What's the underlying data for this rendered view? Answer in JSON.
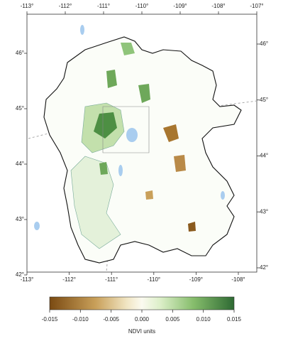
{
  "map": {
    "top_lon_ticks": [
      {
        "value": -113,
        "label": "-113°"
      },
      {
        "value": -112,
        "label": "-112°"
      },
      {
        "value": -111,
        "label": "-111°"
      },
      {
        "value": -110,
        "label": "-110°"
      },
      {
        "value": -109,
        "label": "-109°"
      },
      {
        "value": -108,
        "label": "-108°"
      },
      {
        "value": -107,
        "label": "-107°"
      }
    ],
    "bottom_lon_ticks": [
      {
        "value": -113,
        "label": "-113°"
      },
      {
        "value": -112,
        "label": "-112°"
      },
      {
        "value": -111,
        "label": "-111°"
      },
      {
        "value": -110,
        "label": "-110°"
      },
      {
        "value": -109,
        "label": "-109°"
      },
      {
        "value": -108,
        "label": "-108°"
      }
    ],
    "left_lat_ticks": [
      {
        "value": 46,
        "label": "46°"
      },
      {
        "value": 45,
        "label": "45°"
      },
      {
        "value": 44,
        "label": "44°"
      },
      {
        "value": 43,
        "label": "43°"
      },
      {
        "value": 42,
        "label": "42°"
      }
    ],
    "right_lat_ticks": [
      {
        "value": 46,
        "label": "46°"
      },
      {
        "value": 45,
        "label": "45°"
      },
      {
        "value": 44,
        "label": "44°"
      },
      {
        "value": 43,
        "label": "43°"
      },
      {
        "value": 42,
        "label": "42°"
      }
    ],
    "colorbar": {
      "lim": [
        -0.015,
        0.015
      ],
      "ticks": [
        {
          "value": -0.015,
          "label": "-0.015"
        },
        {
          "value": -0.01,
          "label": "-0.010"
        },
        {
          "value": -0.005,
          "label": "-0.005"
        },
        {
          "value": 0,
          "label": "0.000"
        },
        {
          "value": 0.005,
          "label": "0.005"
        },
        {
          "value": 0.01,
          "label": "0.010"
        },
        {
          "value": 0.015,
          "label": "0.015"
        }
      ],
      "label": "NDVI units"
    }
  }
}
